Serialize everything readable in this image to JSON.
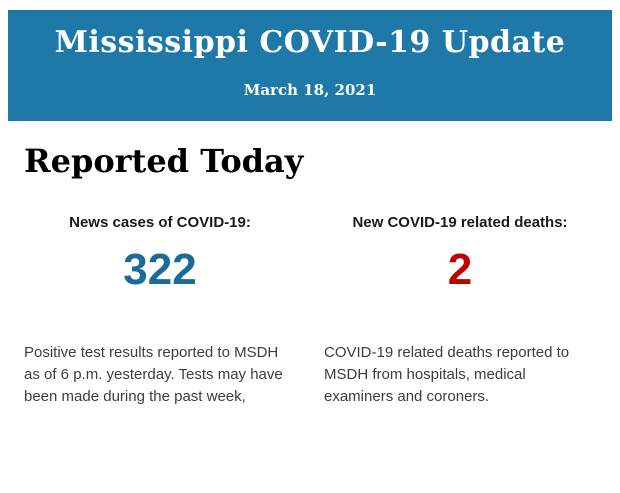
{
  "header": {
    "title": "Mississippi COVID-19 Update",
    "date": "March 18, 2021",
    "background": "#1e79a8",
    "text_color": "#ffffff"
  },
  "section": {
    "heading": "Reported Today"
  },
  "stats": [
    {
      "label": "News cases of COVID-19:",
      "value": "322",
      "value_color": "#1a6a9b",
      "description": "Positive test results reported to MSDH as of 6 p.m. yesterday. Tests may have been made during the past week,"
    },
    {
      "label": "New COVID-19 related deaths:",
      "value": "2",
      "value_color": "#c00000",
      "description": "COVID-19 related deaths reported to MSDH from hospitals, medical examiners and coroners."
    }
  ]
}
